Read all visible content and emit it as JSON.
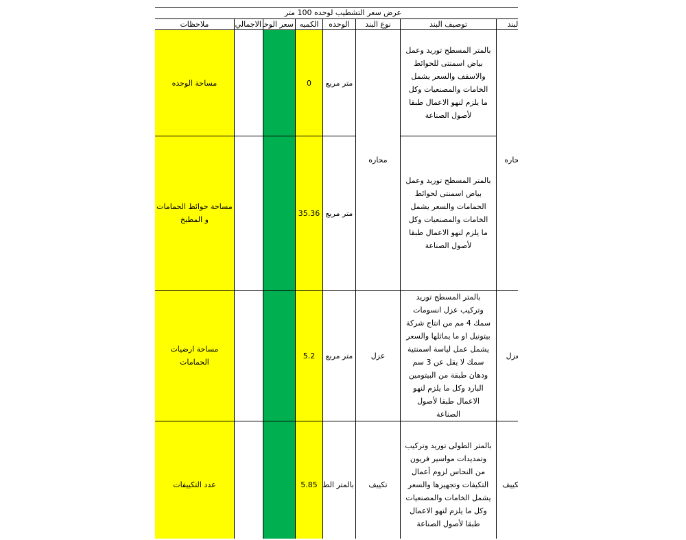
{
  "title": "عرض سعر التشطيب لوحده 100 متر",
  "headers": {
    "item": "البند",
    "description": "توصيف البند",
    "type": "نوع البند",
    "unit": "الوحده",
    "quantity": "الكميه",
    "unit_price": "سعر الوحده",
    "total": "الاجمالي",
    "notes": "ملاحظات"
  },
  "colors": {
    "yellow": "#ffff00",
    "green": "#00b050"
  },
  "rows": [
    {
      "item": "محاره",
      "type": "محاره",
      "description": "بالمتر المسطح توريد وعمل بياض اسمنتى للحوائط والاسقف والسعر يشمل الخامات والمصنعيات وكل ما يلزم لنهو الاعمال طبقا لأصول الصناعة",
      "unit": "متر مربع",
      "quantity": "0",
      "unit_price": "",
      "total": "",
      "notes": "مساحة الوحده"
    },
    {
      "description": "بالمتر المسطح توريد وعمل بياض اسمنتى لحوائط الحمامات والسعر يشمل الخامات والمصنعيات وكل ما يلزم لنهو الاعمال طبقا لأصول الصناعة",
      "unit": "متر مربع",
      "quantity": "35.36",
      "unit_price": "",
      "total": "",
      "notes": "مساحة حوائط الحمامات و المطبخ"
    },
    {
      "item": "لعزل",
      "type": "عزل",
      "description": "بالمتر المسطح توريد وتركيب عزل انسومات سمك 4 مم من انتاج شركة بيتونيل او ما يماثلها والسعر يشمل عمل لياسة اسمنتية سمك لا يقل عن 3 سم ودهان طبقة من البيتومين البارد وكل ما يلزم لنهو الاعمال طبقا لأصول الصناعة",
      "unit": "متر مربع",
      "quantity": "5.2",
      "unit_price": "",
      "total": "",
      "notes": "مساحة ارضيات الحمامات"
    },
    {
      "item": "التكييف",
      "type": "تكييف",
      "description": "بالمتر الطولى توريد وتركيب وتمديدات مواسير فريون  من النحاس لزوم أعمال التكيفات وتجهيزها والسعر يشمل الخامات والمصنعيات وكل ما يلزم لنهو الاعمال طبقا لأصول الصناعة",
      "unit": "بالمتر الطولى",
      "quantity": "5.85",
      "unit_price": "",
      "total": "",
      "notes": "عدد التكييفات"
    }
  ]
}
